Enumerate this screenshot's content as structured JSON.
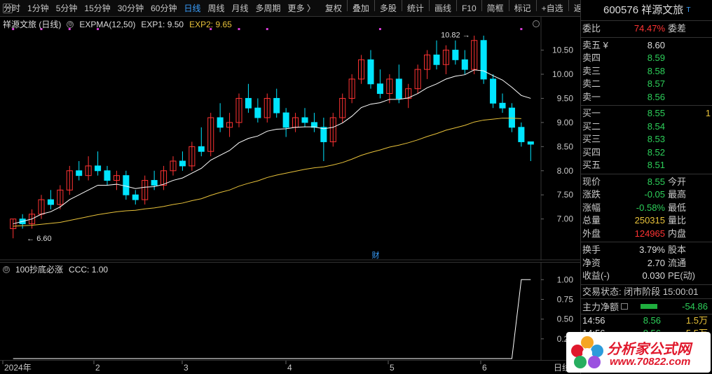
{
  "toolbar": {
    "items": [
      "分时",
      "1分钟",
      "5分钟",
      "15分钟",
      "30分钟",
      "60分钟",
      "日线",
      "周线",
      "月线",
      "多周期",
      "更多 〉"
    ],
    "active_index": 6,
    "tools": [
      "复权",
      "叠加",
      "多股",
      "统计",
      "画线",
      "F10",
      "简框",
      "标记",
      "+自选",
      "返回"
    ]
  },
  "main_legend": {
    "title": "祥源文旅 (日线)",
    "indicator": "EXPMA(12,50)",
    "exp1": "EXP1: 9.50",
    "exp2": "EXP2: 9.65"
  },
  "main_annotations": {
    "high_label": "10.82",
    "low_label": "6.60",
    "cai_label": "财"
  },
  "sub_legend": {
    "title": "100抄底必涨",
    "ccc": "CCC: 1.00"
  },
  "date_axis": {
    "labels": [
      "2024年",
      "2",
      "3",
      "4",
      "5",
      "6"
    ],
    "right_label": "日线"
  },
  "colors": {
    "up": "#ff3333",
    "up_fill": "#00e5ff",
    "down": "#00e5ff",
    "exp1": "#ffffff",
    "exp2": "#e8c23a",
    "accent": "#3aa0ff"
  },
  "chart_data": [
    {
      "type": "candlestick",
      "title": "祥源文旅 (日线)",
      "ylim": [
        6.4,
        10.9
      ],
      "y_ticks": [
        "10.50",
        "10.00",
        "9.50",
        "9.00",
        "8.50",
        "8.00",
        "7.50",
        "7.00"
      ],
      "candles": [
        [
          6.8,
          7.0,
          6.6,
          7.0
        ],
        [
          7.0,
          7.1,
          6.8,
          6.9
        ],
        [
          6.9,
          7.2,
          6.8,
          7.1
        ],
        [
          7.1,
          7.5,
          7.0,
          7.4
        ],
        [
          7.4,
          7.6,
          7.2,
          7.3
        ],
        [
          7.3,
          7.7,
          7.2,
          7.6
        ],
        [
          7.6,
          8.1,
          7.5,
          8.0
        ],
        [
          8.0,
          8.2,
          7.8,
          7.9
        ],
        [
          7.9,
          8.3,
          7.8,
          8.1
        ],
        [
          8.1,
          8.4,
          7.9,
          8.0
        ],
        [
          8.0,
          8.1,
          7.7,
          7.8
        ],
        [
          7.8,
          8.0,
          7.6,
          7.9
        ],
        [
          7.9,
          8.0,
          7.4,
          7.5
        ],
        [
          7.5,
          7.6,
          7.3,
          7.4
        ],
        [
          7.4,
          7.9,
          7.3,
          7.8
        ],
        [
          7.8,
          8.0,
          7.6,
          7.7
        ],
        [
          7.7,
          8.1,
          7.6,
          8.0
        ],
        [
          8.0,
          8.3,
          7.9,
          8.2
        ],
        [
          8.2,
          8.4,
          8.0,
          8.1
        ],
        [
          8.1,
          8.6,
          8.0,
          8.5
        ],
        [
          8.5,
          8.9,
          8.3,
          8.4
        ],
        [
          8.4,
          9.2,
          8.3,
          9.1
        ],
        [
          9.1,
          9.4,
          8.8,
          8.9
        ],
        [
          8.9,
          9.2,
          8.7,
          9.0
        ],
        [
          9.0,
          9.6,
          8.9,
          9.5
        ],
        [
          9.5,
          9.8,
          9.2,
          9.3
        ],
        [
          9.3,
          9.5,
          9.0,
          9.1
        ],
        [
          9.1,
          9.6,
          9.0,
          9.5
        ],
        [
          9.5,
          9.7,
          9.1,
          9.2
        ],
        [
          9.2,
          9.3,
          8.7,
          8.9
        ],
        [
          8.9,
          9.2,
          8.8,
          9.1
        ],
        [
          9.1,
          9.3,
          8.9,
          9.0
        ],
        [
          9.0,
          9.2,
          8.8,
          8.9
        ],
        [
          8.9,
          9.1,
          8.2,
          8.6
        ],
        [
          8.6,
          9.2,
          8.5,
          9.1
        ],
        [
          9.1,
          9.6,
          9.0,
          9.5
        ],
        [
          9.5,
          10.0,
          9.4,
          9.9
        ],
        [
          9.9,
          10.4,
          9.8,
          10.3
        ],
        [
          10.3,
          10.5,
          9.7,
          9.8
        ],
        [
          9.8,
          10.1,
          9.5,
          9.6
        ],
        [
          9.6,
          10.0,
          9.4,
          9.9
        ],
        [
          9.9,
          10.2,
          9.4,
          9.5
        ],
        [
          9.5,
          9.8,
          9.3,
          9.7
        ],
        [
          9.7,
          10.2,
          9.6,
          10.1
        ],
        [
          10.1,
          10.5,
          9.9,
          10.4
        ],
        [
          10.4,
          10.7,
          10.1,
          10.2
        ],
        [
          10.2,
          10.6,
          10.0,
          10.5
        ],
        [
          10.5,
          10.7,
          10.2,
          10.3
        ],
        [
          10.3,
          10.5,
          10.0,
          10.1
        ],
        [
          10.1,
          10.8,
          10.0,
          10.7
        ],
        [
          10.7,
          10.8,
          9.8,
          9.9
        ],
        [
          9.9,
          10.0,
          9.3,
          9.4
        ],
        [
          9.4,
          9.6,
          9.2,
          9.3
        ],
        [
          9.3,
          9.4,
          8.8,
          8.9
        ],
        [
          8.9,
          9.0,
          8.5,
          8.6
        ],
        [
          8.6,
          8.6,
          8.2,
          8.55
        ]
      ],
      "series": [
        {
          "name": "EXP1",
          "values": [
            6.9,
            6.95,
            7.0,
            7.1,
            7.15,
            7.25,
            7.4,
            7.5,
            7.6,
            7.7,
            7.7,
            7.72,
            7.68,
            7.63,
            7.66,
            7.67,
            7.72,
            7.8,
            7.85,
            7.95,
            8.05,
            8.22,
            8.32,
            8.42,
            8.58,
            8.67,
            8.72,
            8.82,
            8.86,
            8.87,
            8.9,
            8.91,
            8.91,
            8.87,
            8.9,
            8.99,
            9.13,
            9.31,
            9.38,
            9.41,
            9.48,
            9.48,
            9.51,
            9.6,
            9.72,
            9.8,
            9.9,
            9.96,
            9.99,
            10.09,
            10.07,
            9.97,
            9.88,
            9.73,
            9.56,
            9.5
          ]
        },
        {
          "name": "EXP2",
          "values": [
            6.85,
            6.86,
            6.87,
            6.89,
            6.91,
            6.93,
            6.97,
            7.01,
            7.05,
            7.09,
            7.12,
            7.15,
            7.17,
            7.18,
            7.21,
            7.23,
            7.26,
            7.3,
            7.33,
            7.38,
            7.42,
            7.49,
            7.55,
            7.6,
            7.68,
            7.74,
            7.79,
            7.86,
            7.91,
            7.95,
            7.99,
            8.03,
            8.06,
            8.08,
            8.12,
            8.17,
            8.24,
            8.32,
            8.38,
            8.43,
            8.49,
            8.53,
            8.58,
            8.64,
            8.71,
            8.77,
            8.84,
            8.89,
            8.94,
            9.01,
            9.05,
            9.07,
            9.09,
            9.09,
            9.08,
            9.65
          ]
        }
      ]
    },
    {
      "type": "line",
      "title": "100抄底必涨",
      "ylim": [
        0,
        1.1
      ],
      "y_ticks": [
        "1.00",
        "0.75",
        "0.50",
        "0.25"
      ],
      "series": [
        {
          "name": "CCC",
          "values": [
            0,
            0,
            0,
            0,
            0,
            0,
            0,
            0,
            0,
            0,
            0,
            0,
            0,
            0,
            0,
            0,
            0,
            0,
            0,
            0,
            0,
            0,
            0,
            0,
            0,
            0,
            0,
            0,
            0,
            0,
            0,
            0,
            0,
            0,
            0,
            0,
            0,
            0,
            0,
            0,
            0,
            0,
            0,
            0,
            0,
            0,
            0,
            0,
            0,
            0,
            0,
            0,
            0,
            0,
            1,
            1
          ]
        }
      ]
    }
  ],
  "quote": {
    "code_name": "600576 祥源文旅",
    "weibi": {
      "label": "委比",
      "value": "74.47%",
      "label2": "委差"
    },
    "asks": [
      {
        "label": "卖五 ¥",
        "price": "8.60",
        "color": "white"
      },
      {
        "label": "卖四",
        "price": "8.59",
        "color": "green"
      },
      {
        "label": "卖三",
        "price": "8.58",
        "color": "green"
      },
      {
        "label": "卖二",
        "price": "8.57",
        "color": "green"
      },
      {
        "label": "卖一",
        "price": "8.56",
        "color": "green"
      }
    ],
    "bids": [
      {
        "label": "买一",
        "price": "8.55",
        "color": "green",
        "vol": "1"
      },
      {
        "label": "买二",
        "price": "8.54",
        "color": "green",
        "vol": ""
      },
      {
        "label": "买三",
        "price": "8.53",
        "color": "green",
        "vol": ""
      },
      {
        "label": "买四",
        "price": "8.52",
        "color": "green",
        "vol": ""
      },
      {
        "label": "买五",
        "price": "8.51",
        "color": "green",
        "vol": ""
      }
    ],
    "stats": [
      {
        "label": "现价",
        "value": "8.55",
        "color": "green",
        "label2": "今开"
      },
      {
        "label": "涨跌",
        "value": "-0.05",
        "color": "green",
        "label2": "最高"
      },
      {
        "label": "涨幅",
        "value": "-0.58%",
        "color": "green",
        "label2": "最低"
      },
      {
        "label": "总量",
        "value": "250315",
        "color": "yellow",
        "label2": "量比"
      },
      {
        "label": "外盘",
        "value": "124965",
        "color": "red",
        "label2": "内盘"
      }
    ],
    "stats2": [
      {
        "label": "换手",
        "value": "3.79%",
        "color": "white",
        "label2": "股本"
      },
      {
        "label": "净资",
        "value": "2.70",
        "color": "white",
        "label2": "流通"
      },
      {
        "label": "收益(-)",
        "value": "0.030",
        "color": "white",
        "label2": "PE(动)"
      }
    ],
    "trade_status": "交易状态: 闭市阶段 15:00:01",
    "main_flow": {
      "label": "主力净额",
      "value": "-54.86"
    },
    "ticks": [
      {
        "time": "14:56",
        "price": "8.56",
        "vol": "1.5万"
      },
      {
        "time": "14:56",
        "price": "8.56",
        "vol": "5.5万"
      }
    ]
  },
  "logo": {
    "line1": "分析家公式网",
    "line2": "www.70822.com"
  }
}
